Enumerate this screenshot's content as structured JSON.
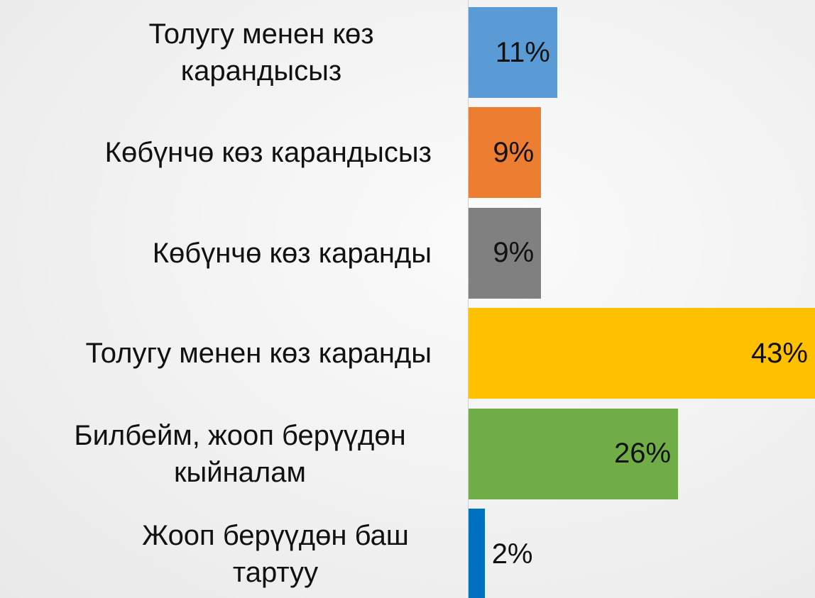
{
  "chart_data": {
    "type": "bar",
    "orientation": "horizontal",
    "categories": [
      "Толугу менен көз карандысыз",
      "Көбүнчө көз карандысыз",
      "Көбүнчө көз каранды",
      "Толугу менен көз каранды",
      "Билбейм, жооп берүүдөн кыйналам",
      "Жооп берүүдөн баш тартуу"
    ],
    "values": [
      11,
      9,
      9,
      43,
      26,
      2
    ],
    "value_labels": [
      "11%",
      "9%",
      "9%",
      "43%",
      "26%",
      "2%"
    ],
    "colors": [
      "#5b9bd5",
      "#ed7d31",
      "#808080",
      "#ffc000",
      "#70ad47",
      "#0070c0"
    ],
    "xlim": [
      0,
      43
    ]
  }
}
